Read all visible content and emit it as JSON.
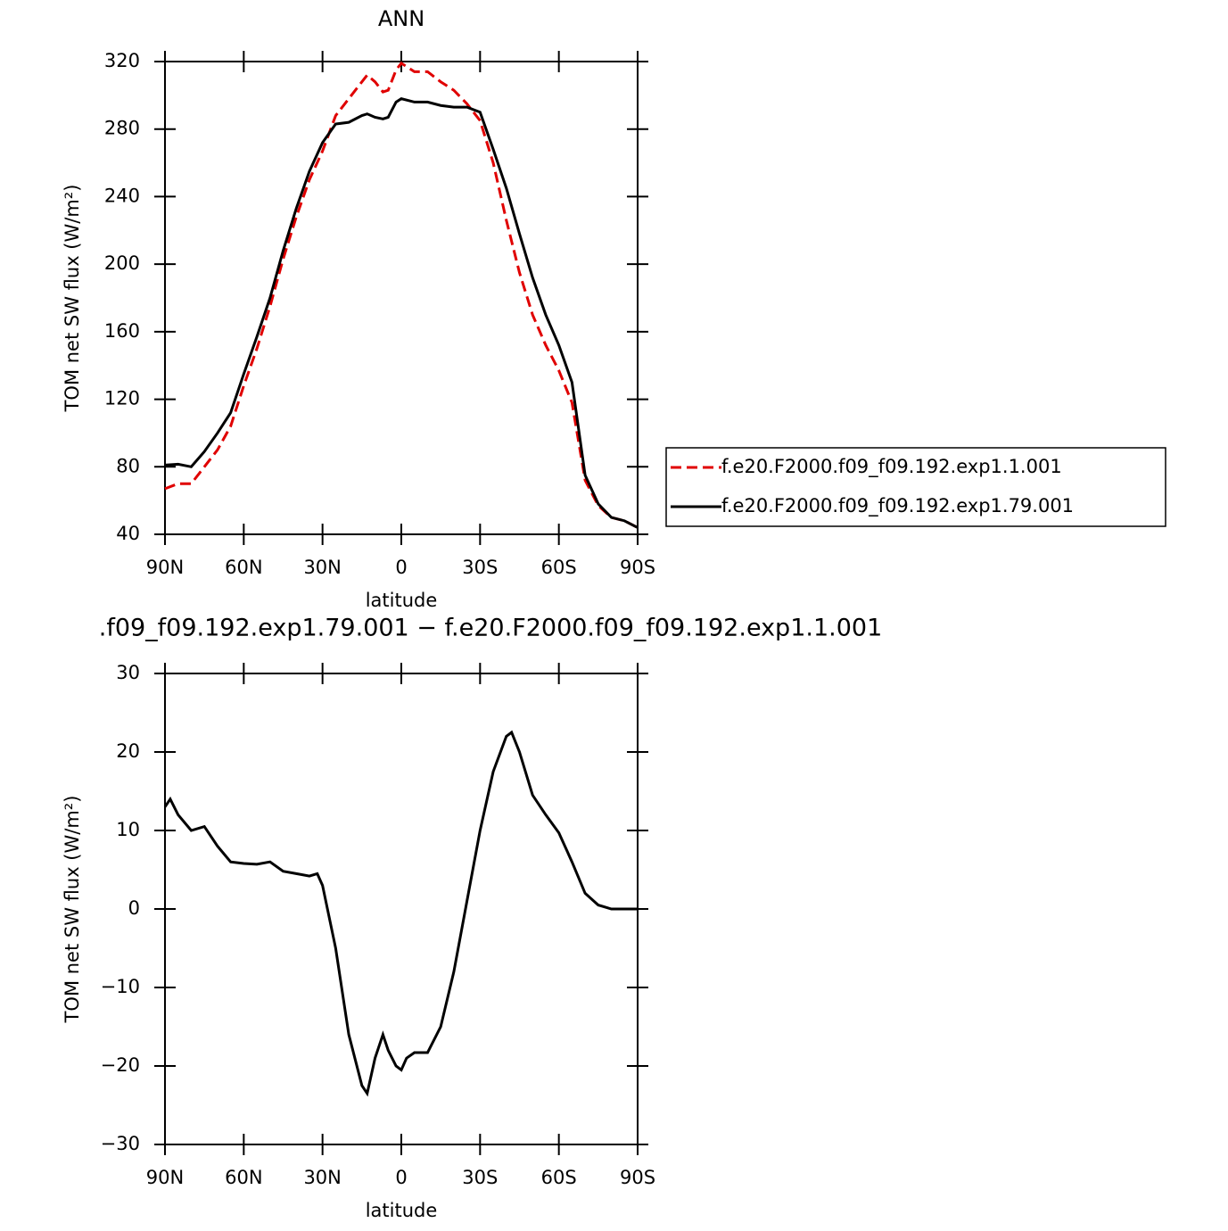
{
  "chart_data": [
    {
      "type": "line",
      "title": "ANN",
      "x_label": "latitude",
      "y_label": "TOM net SW flux (W/m²)",
      "x": [
        90,
        85,
        80,
        75,
        70,
        65,
        60,
        55,
        50,
        45,
        40,
        35,
        30,
        25,
        20,
        15,
        13,
        10,
        7,
        5,
        2,
        0,
        -5,
        -10,
        -15,
        -20,
        -25,
        -30,
        -35,
        -40,
        -45,
        -50,
        -55,
        -60,
        -65,
        -70,
        -75,
        -80,
        -85,
        -90
      ],
      "series": [
        {
          "name": "f.e20.F2000.f09_f09.192.exp1.1.001",
          "color": "#e00000",
          "dash": true,
          "values": [
            67,
            70,
            70,
            80,
            90,
            104,
            128,
            150,
            175,
            203,
            228,
            250,
            267,
            288,
            298,
            308,
            312,
            308,
            302,
            303,
            315,
            319,
            314,
            314,
            308,
            303,
            295,
            285,
            260,
            226,
            195,
            170,
            152,
            137,
            118,
            72,
            57,
            50,
            48,
            44
          ]
        },
        {
          "name": "f.e20.F2000.f09_f09.192.exp1.79.001",
          "color": "#000000",
          "dash": false,
          "values": [
            81,
            81.5,
            80,
            89,
            100,
            112,
            135,
            157,
            180,
            208,
            233,
            255,
            272,
            283,
            284,
            288,
            289,
            287,
            286,
            287,
            296,
            298,
            296,
            296,
            294,
            293,
            293,
            290,
            268,
            245,
            218,
            192,
            170,
            152,
            130,
            75,
            58,
            50,
            48,
            44
          ]
        }
      ],
      "xlim": [
        90,
        -90
      ],
      "xticks": [
        {
          "value": 90,
          "label": "90N"
        },
        {
          "value": 60,
          "label": "60N"
        },
        {
          "value": 30,
          "label": "30N"
        },
        0,
        {
          "value": -30,
          "label": "30S"
        },
        {
          "value": -60,
          "label": "60S"
        },
        {
          "value": -90,
          "label": "90S"
        }
      ],
      "ylim": [
        40,
        320
      ],
      "yticks": [
        40,
        80,
        120,
        160,
        200,
        240,
        280,
        320
      ],
      "legend": "right"
    },
    {
      "type": "line",
      "title": ".f09_f09.192.exp1.79.001 − f.e20.F2000.f09_f09.192.exp1.1.001",
      "x_label": "latitude",
      "y_label": "TOM net SW flux (W/m²)",
      "x": [
        90,
        88,
        85,
        80,
        75,
        70,
        65,
        60,
        55,
        50,
        45,
        40,
        35,
        32,
        30,
        25,
        20,
        15,
        13,
        10,
        7,
        5,
        2,
        0,
        -2,
        -5,
        -10,
        -15,
        -20,
        -25,
        -30,
        -35,
        -40,
        -42,
        -45,
        -50,
        -55,
        -60,
        -65,
        -70,
        -75,
        -80,
        -85,
        -90
      ],
      "series": [
        {
          "color": "#000000",
          "dash": false,
          "values": [
            13,
            14,
            12,
            10,
            10.5,
            8,
            6,
            5.8,
            5.7,
            6,
            4.8,
            4.5,
            4.2,
            4.5,
            3,
            -5,
            -16,
            -22.5,
            -23.5,
            -19,
            -16,
            -18,
            -20,
            -20.5,
            -19,
            -18.3,
            -18.3,
            -15,
            -8,
            1,
            10,
            17.5,
            22,
            22.5,
            20,
            14.5,
            12,
            9.7,
            6,
            2,
            0.5,
            0,
            0,
            0
          ]
        }
      ],
      "xlim": [
        90,
        -90
      ],
      "xticks": [
        {
          "value": 90,
          "label": "90N"
        },
        {
          "value": 60,
          "label": "60N"
        },
        {
          "value": 30,
          "label": "30N"
        },
        0,
        {
          "value": -30,
          "label": "30S"
        },
        {
          "value": -60,
          "label": "60S"
        },
        {
          "value": -90,
          "label": "90S"
        }
      ],
      "ylim": [
        -30,
        30
      ],
      "yticks": [
        {
          "value": -30,
          "label": "−30"
        },
        {
          "value": -20,
          "label": "−20"
        },
        {
          "value": -10,
          "label": "−10"
        },
        0,
        10,
        20,
        30
      ]
    }
  ]
}
